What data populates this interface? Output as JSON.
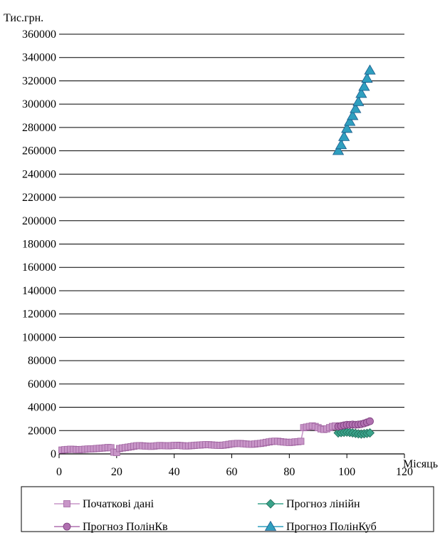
{
  "chart_data": {
    "type": "line",
    "ylabel": "Тис.грн.",
    "xlabel": "Місяць",
    "xlim": [
      0,
      120
    ],
    "ylim": [
      0,
      360000
    ],
    "x_ticks": [
      "0",
      "20",
      "40",
      "60",
      "80",
      "100",
      "120"
    ],
    "y_ticks": [
      "0",
      "20000",
      "40000",
      "60000",
      "80000",
      "100000",
      "120000",
      "140000",
      "160000",
      "180000",
      "200000",
      "220000",
      "240000",
      "260000",
      "280000",
      "300000",
      "320000",
      "340000",
      "360000"
    ],
    "grid": "horizontal",
    "legend_position": "bottom",
    "series": [
      {
        "name": "Початкові дані",
        "color": "#c896c8",
        "edge": "#a064a0",
        "marker": "square",
        "x": [
          1,
          2,
          3,
          4,
          5,
          6,
          7,
          8,
          9,
          10,
          11,
          12,
          13,
          14,
          15,
          16,
          17,
          18,
          19,
          20,
          21,
          22,
          23,
          24,
          25,
          26,
          27,
          28,
          29,
          30,
          31,
          32,
          33,
          34,
          35,
          36,
          37,
          38,
          39,
          40,
          41,
          42,
          43,
          44,
          45,
          46,
          47,
          48,
          49,
          50,
          51,
          52,
          53,
          54,
          55,
          56,
          57,
          58,
          59,
          60,
          61,
          62,
          63,
          64,
          65,
          66,
          67,
          68,
          69,
          70,
          71,
          72,
          73,
          74,
          75,
          76,
          77,
          78,
          79,
          80,
          81,
          82,
          83,
          84,
          85,
          86,
          87,
          88,
          89,
          90,
          91,
          92,
          93,
          94,
          95,
          96
        ],
        "y": [
          3300,
          3600,
          3800,
          4000,
          3900,
          3700,
          3600,
          3800,
          4000,
          4200,
          4300,
          4400,
          4600,
          4800,
          5000,
          5200,
          5500,
          5300,
          1500,
          1200,
          4600,
          5100,
          5400,
          5800,
          6200,
          6600,
          7000,
          7100,
          6900,
          6700,
          6600,
          6500,
          6700,
          7000,
          7200,
          7100,
          7000,
          6900,
          7100,
          7300,
          7400,
          7200,
          7000,
          6800,
          6900,
          7100,
          7300,
          7500,
          7600,
          7800,
          7900,
          7900,
          7700,
          7500,
          7400,
          7300,
          7500,
          7800,
          8200,
          8600,
          8800,
          9000,
          8900,
          8700,
          8500,
          8300,
          8300,
          8500,
          8800,
          9000,
          9400,
          9900,
          10300,
          10700,
          10900,
          10800,
          10500,
          10200,
          10000,
          9800,
          10000,
          10300,
          10500,
          10800,
          22500,
          23000,
          23500,
          24000,
          23500,
          22500,
          21500,
          21000,
          21500,
          22500,
          23500,
          24000
        ]
      },
      {
        "name": "Прогноз лінійн",
        "color": "#3aa38a",
        "edge": "#1f6b58",
        "marker": "diamond",
        "x": [
          97,
          98,
          99,
          100,
          101,
          102,
          103,
          104,
          105,
          106,
          107,
          108
        ],
        "y": [
          18000,
          18300,
          18500,
          18700,
          18400,
          18000,
          17600,
          17200,
          17000,
          17300,
          17600,
          18000
        ]
      },
      {
        "name": "Прогноз ПолінКв",
        "color": "#b070b0",
        "edge": "#7a3a7a",
        "marker": "circle",
        "x": [
          97,
          98,
          99,
          100,
          101,
          102,
          103,
          104,
          105,
          106,
          107,
          108
        ],
        "y": [
          23500,
          24000,
          24500,
          25000,
          25000,
          25200,
          25000,
          25200,
          25500,
          26200,
          27000,
          28000
        ]
      },
      {
        "name": "Прогноз ПолінКуб",
        "color": "#2f9fbf",
        "edge": "#1a5a8a",
        "marker": "triangle",
        "x": [
          97,
          98,
          99,
          100,
          101,
          102,
          103,
          104,
          105,
          106,
          107,
          108
        ],
        "y": [
          260000,
          265000,
          272000,
          279000,
          285000,
          290000,
          296000,
          302000,
          309000,
          315000,
          322000,
          329000
        ]
      }
    ]
  }
}
